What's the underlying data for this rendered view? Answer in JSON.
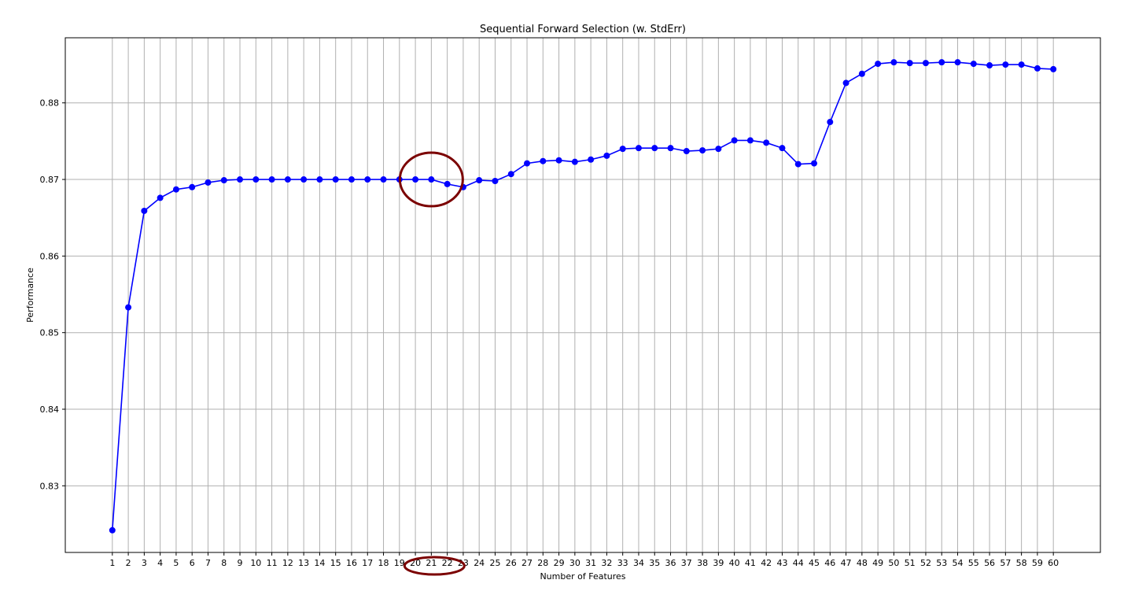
{
  "chart_data": {
    "type": "line",
    "title": "Sequential Forward Selection (w. StdErr)",
    "xlabel": "Number of Features",
    "ylabel": "Performance",
    "x": [
      1,
      2,
      3,
      4,
      5,
      6,
      7,
      8,
      9,
      10,
      11,
      12,
      13,
      14,
      15,
      16,
      17,
      18,
      19,
      20,
      21,
      22,
      23,
      24,
      25,
      26,
      27,
      28,
      29,
      30,
      31,
      32,
      33,
      34,
      35,
      36,
      37,
      38,
      39,
      40,
      41,
      42,
      43,
      44,
      45,
      46,
      47,
      48,
      49,
      50,
      51,
      52,
      53,
      54,
      55,
      56,
      57,
      58,
      59,
      60
    ],
    "xlim": [
      -1.95,
      62.95
    ],
    "ylim": [
      0.8213,
      0.8885
    ],
    "yticks": [
      0.83,
      0.84,
      0.85,
      0.86,
      0.87,
      0.88
    ],
    "ytick_labels": [
      "0.83",
      "0.84",
      "0.85",
      "0.86",
      "0.87",
      "0.88"
    ],
    "grid": true,
    "series": [
      {
        "color": "#0000ff",
        "marker": "circle",
        "values": [
          0.8242,
          0.8533,
          0.8659,
          0.8676,
          0.8687,
          0.869,
          0.8696,
          0.8699,
          0.87,
          0.87,
          0.87,
          0.87,
          0.87,
          0.87,
          0.87,
          0.87,
          0.87,
          0.87,
          0.87,
          0.87,
          0.87,
          0.8694,
          0.869,
          0.8699,
          0.8698,
          0.8707,
          0.8721,
          0.8724,
          0.8725,
          0.8723,
          0.8726,
          0.8731,
          0.874,
          0.8741,
          0.8741,
          0.8741,
          0.8737,
          0.8738,
          0.874,
          0.8751,
          0.8751,
          0.8748,
          0.8741,
          0.872,
          0.8721,
          0.8775,
          0.8826,
          0.8838,
          0.8851,
          0.8853,
          0.8852,
          0.8852,
          0.8853,
          0.8853,
          0.8851,
          0.8849,
          0.885,
          0.885,
          0.8845,
          0.8844
        ]
      }
    ],
    "annotations": [
      {
        "shape": "ellipse",
        "color": "#7b0000",
        "target": "point",
        "x": 21,
        "y": 0.87
      },
      {
        "shape": "ellipse",
        "color": "#7b0000",
        "target": "x-tick-label",
        "x": 21
      }
    ]
  }
}
